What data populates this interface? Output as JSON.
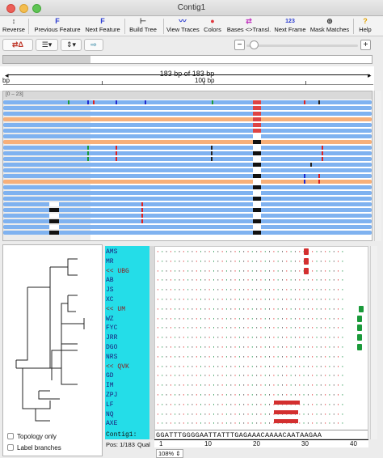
{
  "window": {
    "title": "Contig1"
  },
  "toolbar": {
    "buttons": [
      {
        "label": "Reverse",
        "icon": "↕"
      },
      {
        "label": "Previous Feature",
        "icon": "F"
      },
      {
        "label": "Next Feature",
        "icon": "F"
      },
      {
        "label": "Build Tree",
        "icon": "⊢"
      },
      {
        "label": "View Traces",
        "icon": "〰"
      },
      {
        "label": "Colors",
        "icon": "●"
      },
      {
        "label": "Bases <>Transl.",
        "icon": "⇄"
      },
      {
        "label": "Next Frame",
        "icon": "123"
      },
      {
        "label": "Mask Matches",
        "icon": "⊚"
      },
      {
        "label": "Help",
        "icon": "?"
      }
    ]
  },
  "ruler": {
    "span_label": "183 bp of 183 bp",
    "tick_left": "bp",
    "tick_100": "100 bp"
  },
  "reads": {
    "range_label": "[0 – 23]"
  },
  "tree_options": {
    "topology_only": "Topology only",
    "label_branches": "Label branches"
  },
  "sequences": [
    {
      "name": "AMS",
      "hl": false
    },
    {
      "name": "MR",
      "hl": false
    },
    {
      "name": "<< UBG",
      "hl": true
    },
    {
      "name": "AB",
      "hl": false
    },
    {
      "name": "JS",
      "hl": false
    },
    {
      "name": "XC",
      "hl": false
    },
    {
      "name": "<< UM",
      "hl": true
    },
    {
      "name": "WZ",
      "hl": false
    },
    {
      "name": "FYC",
      "hl": false
    },
    {
      "name": "JRR",
      "hl": false
    },
    {
      "name": "DGO",
      "hl": false
    },
    {
      "name": "NRS",
      "hl": false
    },
    {
      "name": "<< QVK",
      "hl": true
    },
    {
      "name": "GD",
      "hl": false
    },
    {
      "name": "IM",
      "hl": false
    },
    {
      "name": "ZPJ",
      "hl": false
    },
    {
      "name": "LF",
      "hl": false
    },
    {
      "name": "NQ",
      "hl": false
    },
    {
      "name": "AXE",
      "hl": false
    }
  ],
  "consensus": {
    "name": "Contig1:",
    "sequence": "GGATTTGGGGAATTATTTGAGAAACAAAACAATAAGAA"
  },
  "position_ruler": {
    "t1": "1",
    "t10": "10",
    "t20": "20",
    "t30": "30",
    "t40": "40"
  },
  "status": {
    "pos": "Pos: 1/183",
    "qual": "Qual",
    "zoom": "108%"
  },
  "colors": {
    "read": "#7fb2f0",
    "read_alt": "#f7b07a",
    "names_bg": "#24dde8",
    "accent_red": "#d32f2f"
  }
}
